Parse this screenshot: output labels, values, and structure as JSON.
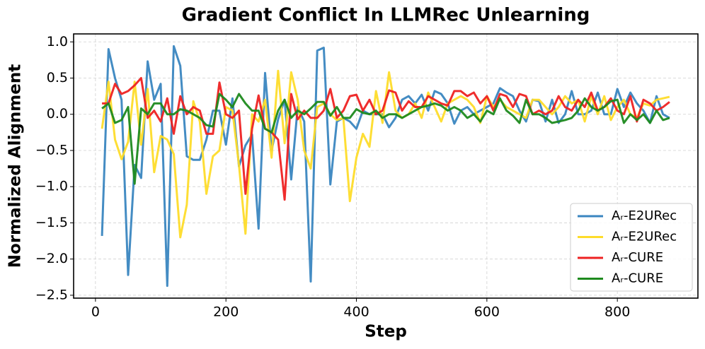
{
  "chart_data": {
    "type": "line",
    "title": "Gradient Conflict In LLMRec Unlearning",
    "xlabel": "Step",
    "ylabel": "Normalized Alignment",
    "x": [
      10,
      20,
      30,
      40,
      50,
      60,
      70,
      80,
      90,
      100,
      110,
      120,
      130,
      140,
      150,
      160,
      170,
      180,
      190,
      200,
      210,
      220,
      230,
      240,
      250,
      260,
      270,
      280,
      290,
      300,
      310,
      320,
      330,
      340,
      350,
      360,
      370,
      380,
      390,
      400,
      410,
      420,
      430,
      440,
      450,
      460,
      470,
      480,
      490,
      500,
      510,
      520,
      530,
      540,
      550,
      560,
      570,
      580,
      590,
      600,
      610,
      620,
      630,
      640,
      650,
      660,
      670,
      680,
      690,
      700,
      710,
      720,
      730,
      740,
      750,
      760,
      770,
      780,
      790,
      800,
      810,
      820,
      830,
      840,
      850,
      860,
      870,
      880
    ],
    "series": [
      {
        "name": "Aᵣ-E2URec",
        "color": "#3a86c0",
        "values": [
          -1.68,
          0.9,
          0.5,
          0.2,
          -2.22,
          -0.7,
          -0.88,
          0.73,
          0.2,
          0.42,
          -2.37,
          0.94,
          0.67,
          -0.58,
          -0.63,
          -0.63,
          -0.35,
          0.05,
          0.05,
          -0.42,
          0.22,
          -0.72,
          -0.43,
          -0.28,
          -1.58,
          0.57,
          -0.5,
          -0.07,
          0.2,
          -0.9,
          0.1,
          -0.1,
          -2.31,
          0.88,
          0.92,
          -0.97,
          -0.1,
          -0.05,
          -0.1,
          -0.2,
          0.05,
          0.0,
          0.0,
          0.0,
          -0.18,
          -0.05,
          0.2,
          0.25,
          0.15,
          0.27,
          0.05,
          0.32,
          0.28,
          0.15,
          -0.13,
          0.05,
          0.1,
          0.0,
          0.05,
          0.1,
          0.15,
          0.36,
          0.3,
          0.25,
          0.05,
          -0.1,
          0.2,
          0.18,
          -0.1,
          0.2,
          -0.12,
          0.0,
          0.32,
          0.0,
          0.0,
          0.05,
          0.3,
          0.0,
          0.0,
          0.35,
          0.1,
          0.3,
          0.15,
          0.05,
          -0.12,
          0.25,
          0.0,
          -0.05
        ]
      },
      {
        "name": "Aᵣ-E2URec",
        "color": "#fedc2a",
        "values": [
          -0.2,
          0.45,
          -0.35,
          -0.62,
          -0.38,
          0.45,
          -0.42,
          0.35,
          -0.8,
          -0.3,
          -0.35,
          -0.55,
          -1.7,
          -1.25,
          0.18,
          -0.1,
          -1.1,
          -0.58,
          -0.5,
          0.1,
          0.05,
          -0.7,
          -1.65,
          0.0,
          -0.1,
          0.2,
          -0.6,
          0.6,
          -0.4,
          0.58,
          0.2,
          -0.5,
          -0.75,
          0.1,
          0.15,
          0.0,
          -0.08,
          -0.05,
          -1.2,
          -0.6,
          -0.27,
          -0.45,
          0.32,
          -0.12,
          0.58,
          0.05,
          -0.05,
          0.0,
          0.15,
          -0.05,
          0.3,
          0.1,
          -0.1,
          0.15,
          0.2,
          0.25,
          0.2,
          0.1,
          -0.12,
          0.25,
          0.1,
          0.2,
          0.1,
          0.05,
          0.0,
          -0.05,
          0.2,
          0.2,
          0.1,
          0.0,
          0.1,
          0.25,
          0.15,
          0.2,
          -0.1,
          0.25,
          0.0,
          0.25,
          -0.08,
          0.1,
          0.2,
          0.0,
          -0.05,
          0.15,
          0.12,
          0.2,
          0.22,
          0.24
        ]
      },
      {
        "name": "Aᵣ-CURE",
        "color": "#ee2222",
        "values": [
          0.15,
          0.15,
          0.42,
          0.28,
          0.32,
          0.4,
          0.5,
          -0.05,
          0.05,
          -0.1,
          0.22,
          -0.27,
          0.25,
          0.0,
          0.1,
          0.05,
          -0.27,
          -0.27,
          0.44,
          0.0,
          -0.05,
          0.05,
          -1.1,
          -0.2,
          0.26,
          -0.2,
          -0.25,
          -0.35,
          -1.18,
          0.28,
          -0.07,
          0.05,
          -0.05,
          -0.05,
          0.05,
          0.35,
          -0.05,
          0.05,
          0.25,
          0.27,
          0.05,
          0.2,
          0.0,
          0.05,
          0.33,
          0.3,
          0.05,
          0.18,
          0.1,
          0.1,
          0.25,
          0.2,
          0.15,
          0.12,
          0.32,
          0.32,
          0.25,
          0.3,
          0.15,
          0.25,
          0.05,
          0.28,
          0.25,
          0.1,
          0.28,
          0.25,
          0.0,
          0.05,
          0.0,
          0.05,
          0.25,
          0.1,
          0.05,
          0.2,
          0.1,
          0.3,
          0.05,
          0.1,
          0.22,
          0.05,
          0.0,
          0.25,
          -0.1,
          0.2,
          0.15,
          0.05,
          0.1,
          0.17
        ]
      },
      {
        "name": "Aᵣ-CURE",
        "color": "#1e8a1e",
        "values": [
          0.08,
          0.15,
          -0.12,
          -0.08,
          0.1,
          -0.96,
          0.08,
          0.0,
          0.15,
          0.15,
          0.0,
          0.0,
          0.07,
          0.05,
          0.0,
          -0.05,
          -0.15,
          -0.17,
          0.28,
          0.2,
          0.1,
          0.28,
          0.15,
          0.05,
          0.05,
          -0.2,
          -0.25,
          0.05,
          0.2,
          -0.05,
          0.05,
          0.0,
          0.08,
          0.17,
          0.17,
          -0.02,
          0.1,
          -0.05,
          -0.05,
          0.07,
          0.02,
          0.0,
          0.05,
          -0.05,
          0.0,
          0.0,
          -0.05,
          0.0,
          0.05,
          0.1,
          0.12,
          0.15,
          0.12,
          0.05,
          0.1,
          0.05,
          -0.05,
          0.0,
          -0.1,
          0.05,
          0.0,
          0.22,
          0.05,
          -0.02,
          -0.12,
          0.2,
          0.0,
          0.0,
          -0.05,
          -0.12,
          -0.1,
          -0.08,
          -0.05,
          0.05,
          0.22,
          0.1,
          0.05,
          0.1,
          0.18,
          0.2,
          -0.12,
          0.0,
          -0.08,
          0.0,
          -0.12,
          0.05,
          -0.08,
          -0.05
        ]
      }
    ],
    "xlim": [
      -33.5,
      923.5
    ],
    "ylim": [
      -2.54,
      1.11
    ],
    "xticks": [
      0,
      200,
      400,
      600,
      800
    ],
    "yticks": [
      {
        "value": 1,
        "label": "1.0"
      },
      {
        "value": 0.5,
        "label": "0.5"
      },
      {
        "value": 0,
        "label": "0.0"
      },
      {
        "value": -0.5,
        "label": "−0.5"
      },
      {
        "value": -1,
        "label": "−1.0"
      },
      {
        "value": -1.5,
        "label": "−1.5"
      },
      {
        "value": -2,
        "label": "−2.0"
      },
      {
        "value": -2.5,
        "label": "−2.5"
      }
    ],
    "grid": true,
    "legend": "lower right"
  }
}
